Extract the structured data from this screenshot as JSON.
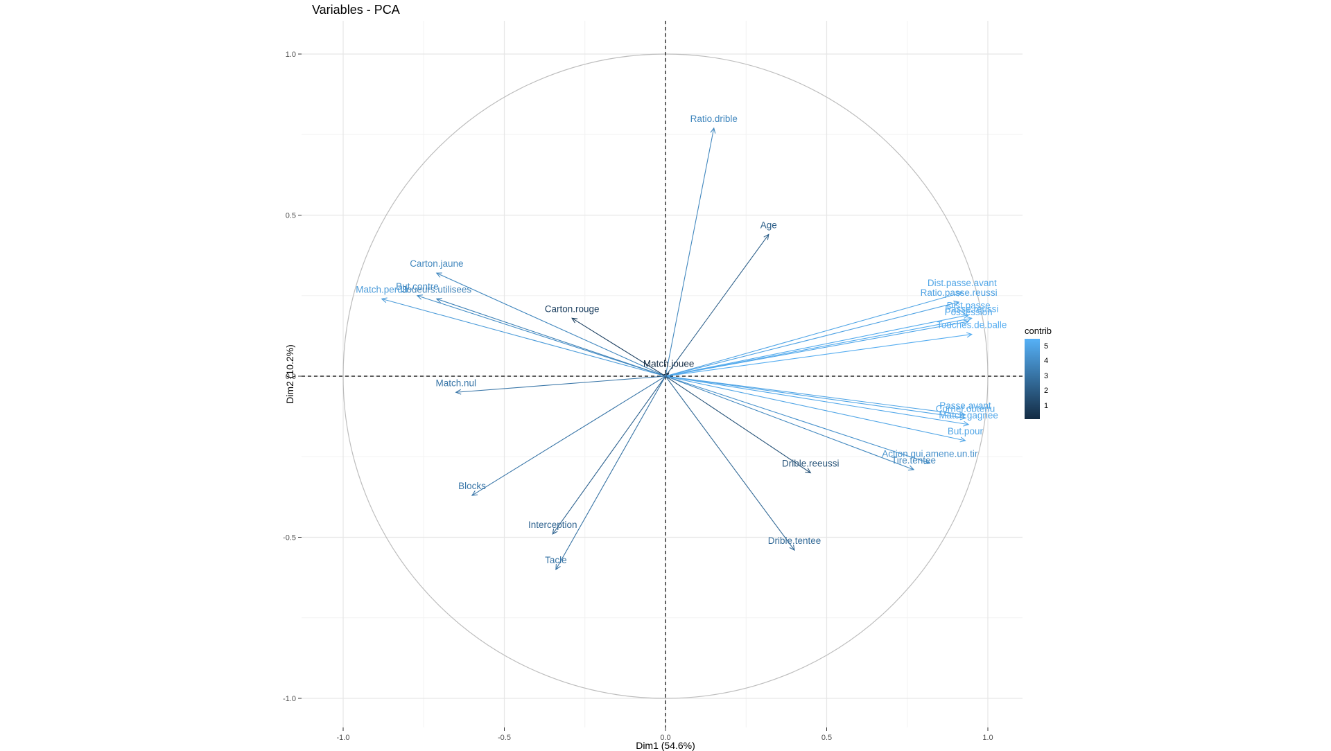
{
  "chart_data": {
    "type": "scatter",
    "subtype": "pca-variable-correlation-circle",
    "title": "Variables - PCA",
    "xlabel": "Dim1 (54.6%)",
    "ylabel": "Dim2 (10.2%)",
    "xlim": [
      -1.1,
      1.1
    ],
    "ylim": [
      -1.1,
      1.1
    ],
    "x_ticks": [
      -1.0,
      -0.5,
      0.0,
      0.5,
      1.0
    ],
    "x_tick_labels": [
      "-1.0",
      "-0.5",
      "0.0",
      "0.5",
      "1.0"
    ],
    "y_ticks": [
      -1.0,
      -0.5,
      0.0,
      0.5,
      1.0
    ],
    "y_tick_labels": [
      "-1.0",
      "-0.5",
      "0.0",
      "0.5",
      "1.0"
    ],
    "grid": true,
    "unit_circle": true,
    "legend": {
      "title": "contrib",
      "ticks": [
        1,
        2,
        3,
        4,
        5
      ],
      "tick_labels": [
        "1",
        "2",
        "3",
        "4",
        "5"
      ],
      "range": [
        0.1,
        5.5
      ],
      "color_low": "#132B43",
      "color_high": "#56B1F7",
      "position": "right"
    },
    "variables": [
      {
        "name": "Ratio.drible",
        "x": 0.15,
        "y": 0.77,
        "contrib": 3.8
      },
      {
        "name": "Age",
        "x": 0.32,
        "y": 0.44,
        "contrib": 2.2
      },
      {
        "name": "Carton.jaune",
        "x": -0.71,
        "y": 0.32,
        "contrib": 3.8
      },
      {
        "name": "But.contre",
        "x": -0.77,
        "y": 0.25,
        "contrib": 4.0
      },
      {
        "name": "Match.perdu",
        "x": -0.88,
        "y": 0.24,
        "contrib": 4.6
      },
      {
        "name": "Joueurs.utilisees",
        "x": -0.71,
        "y": 0.24,
        "contrib": 3.6
      },
      {
        "name": "Carton.rouge",
        "x": -0.29,
        "y": 0.18,
        "contrib": 1.0
      },
      {
        "name": "Match.jouee",
        "x": 0.01,
        "y": 0.01,
        "contrib": 0.1
      },
      {
        "name": "Match.nul",
        "x": -0.65,
        "y": -0.05,
        "contrib": 3.1
      },
      {
        "name": "Dist.passe.avant",
        "x": 0.92,
        "y": 0.26,
        "contrib": 5.0
      },
      {
        "name": "Ratio.passe.reussi",
        "x": 0.91,
        "y": 0.23,
        "contrib": 4.9
      },
      {
        "name": "Dist.passe",
        "x": 0.94,
        "y": 0.19,
        "contrib": 5.2
      },
      {
        "name": "Passe.reussi",
        "x": 0.95,
        "y": 0.18,
        "contrib": 5.2
      },
      {
        "name": "Possession",
        "x": 0.94,
        "y": 0.17,
        "contrib": 5.1
      },
      {
        "name": "Touches.de.balle",
        "x": 0.95,
        "y": 0.13,
        "contrib": 5.3
      },
      {
        "name": "Passe.avant",
        "x": 0.93,
        "y": -0.12,
        "contrib": 5.0
      },
      {
        "name": "Corner.obtenu",
        "x": 0.93,
        "y": -0.13,
        "contrib": 5.0
      },
      {
        "name": "Match.gagnee",
        "x": 0.94,
        "y": -0.15,
        "contrib": 5.1
      },
      {
        "name": "But.pour",
        "x": 0.93,
        "y": -0.2,
        "contrib": 5.0
      },
      {
        "name": "Action.qui.amene.un.tir",
        "x": 0.82,
        "y": -0.27,
        "contrib": 4.2
      },
      {
        "name": "Tire.tentee",
        "x": 0.77,
        "y": -0.29,
        "contrib": 3.8
      },
      {
        "name": "Drible.reeussi",
        "x": 0.45,
        "y": -0.3,
        "contrib": 1.7
      },
      {
        "name": "Drible.tentee",
        "x": 0.4,
        "y": -0.54,
        "contrib": 2.6
      },
      {
        "name": "Blocks",
        "x": -0.6,
        "y": -0.37,
        "contrib": 3.1
      },
      {
        "name": "Interception",
        "x": -0.35,
        "y": -0.49,
        "contrib": 2.4
      },
      {
        "name": "Tacle",
        "x": -0.34,
        "y": -0.6,
        "contrib": 3.0
      }
    ]
  }
}
